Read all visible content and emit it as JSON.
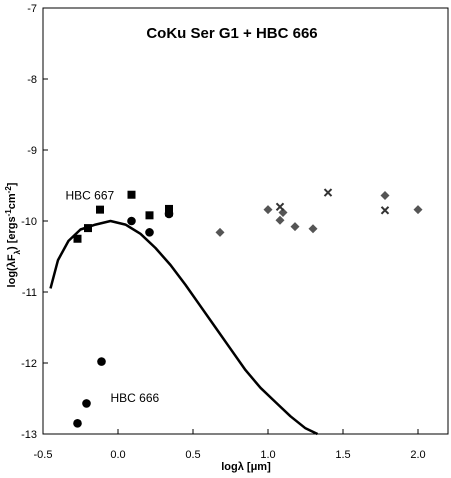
{
  "chart_data": {
    "type": "scatter",
    "title": "CoKu Ser G1 + HBC 666",
    "xlabel": "logλ [μm]",
    "ylabel": "log(λF",
    "ylabel_sub": "λ",
    "ylabel_rest": ") [ergs",
    "ylabel_sup1": "-1",
    "ylabel_mid": "cm",
    "ylabel_sup2": "-2",
    "ylabel_end": "]",
    "xlim": [
      -0.5,
      2.2
    ],
    "ylim": [
      -13,
      -7
    ],
    "x_ticks": [
      -0.5,
      0.0,
      0.5,
      1.0,
      1.5,
      2.0
    ],
    "x_tick_labels": [
      "-0.5",
      "0.0",
      "0.5",
      "1.0",
      "1.5",
      "2.0"
    ],
    "y_ticks": [
      -13,
      -12,
      -11,
      -10,
      -9,
      -8,
      -7
    ],
    "y_tick_labels": [
      "-13",
      "-12",
      "-11",
      "-10",
      "-9",
      "-8",
      "-7"
    ],
    "grid": false,
    "annotations": [
      {
        "text": "HBC 667",
        "x": -0.35,
        "y": -9.7
      },
      {
        "text": "HBC 666",
        "x": -0.05,
        "y": -12.55
      }
    ],
    "series": [
      {
        "marker": "square",
        "color": "#000000",
        "x": [
          -0.27,
          -0.2,
          -0.12,
          0.09,
          0.21,
          0.34,
          0.34
        ],
        "y": [
          -10.25,
          -10.1,
          -9.84,
          -9.63,
          -9.92,
          -9.83,
          -9.88
        ]
      },
      {
        "marker": "circle",
        "color": "#000000",
        "x": [
          -0.27,
          -0.21,
          -0.11,
          0.09,
          0.21,
          0.34
        ],
        "y": [
          -12.85,
          -12.57,
          -11.98,
          -10.0,
          -10.16,
          -9.9
        ]
      },
      {
        "marker": "diamond",
        "color": "#555555",
        "x": [
          0.68,
          1.0,
          1.08,
          1.1,
          1.18,
          1.3,
          1.78,
          2.0
        ],
        "y": [
          -10.16,
          -9.84,
          -9.99,
          -9.88,
          -10.08,
          -10.11,
          -9.64,
          -9.84
        ]
      },
      {
        "marker": "cross",
        "color": "#333333",
        "x": [
          1.08,
          1.4,
          1.78
        ],
        "y": [
          -9.8,
          -9.6,
          -9.85
        ]
      },
      {
        "marker": "line",
        "color": "#000000",
        "x": [
          -0.45,
          -0.4,
          -0.33,
          -0.25,
          -0.15,
          -0.05,
          0.05,
          0.15,
          0.25,
          0.35,
          0.45,
          0.55,
          0.65,
          0.75,
          0.85,
          0.95,
          1.05,
          1.15,
          1.25,
          1.33
        ],
        "y": [
          -10.95,
          -10.55,
          -10.28,
          -10.12,
          -10.05,
          -10.0,
          -10.05,
          -10.18,
          -10.38,
          -10.62,
          -10.9,
          -11.2,
          -11.5,
          -11.8,
          -12.1,
          -12.35,
          -12.55,
          -12.75,
          -12.92,
          -13.0
        ]
      }
    ]
  }
}
